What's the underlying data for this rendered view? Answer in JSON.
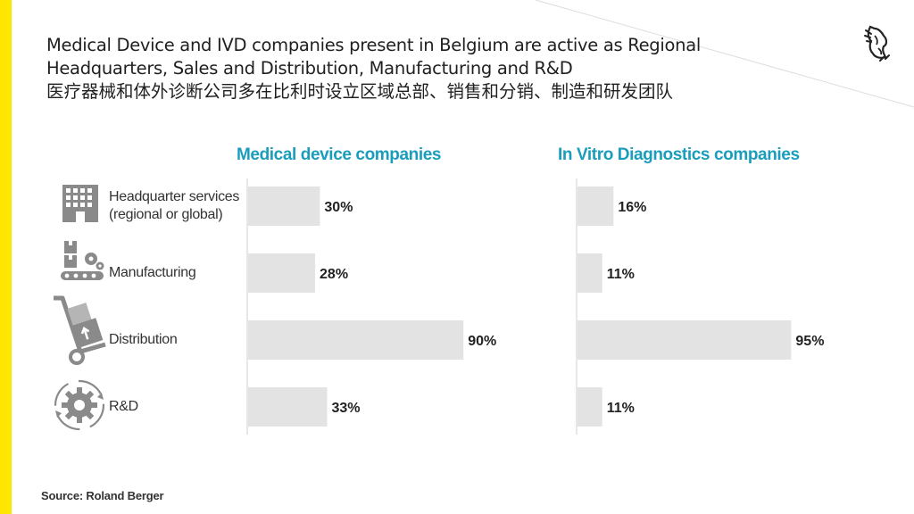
{
  "page": {
    "title_en_line1": "Medical Device and IVD companies present in Belgium are active as Regional",
    "title_en_line2": "Headquarters, Sales and Distribution, Manufacturing and R&D",
    "title_zh": "医疗器械和体外诊断公司多在比利时设立区域总部、销售和分销、制造和研发团队",
    "source": "Source: Roland Berger",
    "accent_color": "#FFE600",
    "chart_title_color": "#1a9dbc",
    "bar_color": "#e3e3e3"
  },
  "categories": [
    {
      "label_line1": "Headquarter services",
      "label_line2": "(regional or global)",
      "icon": "building-icon"
    },
    {
      "label_line1": "Manufacturing",
      "label_line2": "",
      "icon": "factory-conveyor-icon"
    },
    {
      "label_line1": "Distribution",
      "label_line2": "",
      "icon": "hand-truck-icon"
    },
    {
      "label_line1": "R&D",
      "label_line2": "",
      "icon": "gear-cycle-icon"
    }
  ],
  "chart_data": [
    {
      "type": "bar",
      "orientation": "horizontal",
      "title": "Medical device companies",
      "categories": [
        "Headquarter services (regional or global)",
        "Manufacturing",
        "Distribution",
        "R&D"
      ],
      "values": [
        30,
        28,
        90,
        33
      ],
      "value_labels": [
        "30%",
        "28%",
        "90%",
        "33%"
      ],
      "xlim": [
        0,
        100
      ],
      "grid": false
    },
    {
      "type": "bar",
      "orientation": "horizontal",
      "title": "In Vitro Diagnostics companies",
      "categories": [
        "Headquarter services (regional or global)",
        "Manufacturing",
        "Distribution",
        "R&D"
      ],
      "values": [
        16,
        11,
        95,
        11
      ],
      "value_labels": [
        "16%",
        "11%",
        "95%",
        "11%"
      ],
      "xlim": [
        0,
        100
      ],
      "grid": false
    }
  ]
}
